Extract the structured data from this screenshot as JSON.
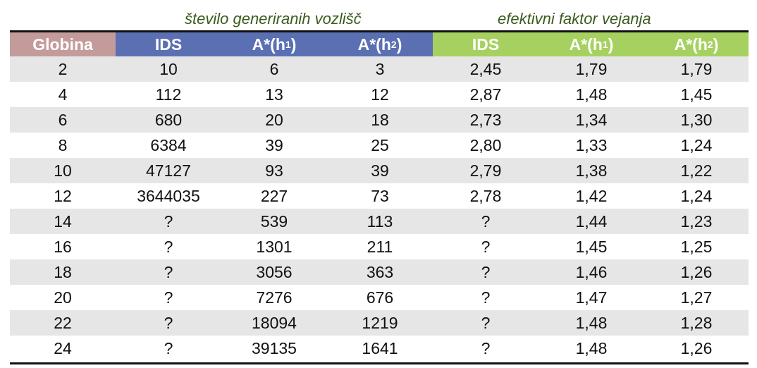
{
  "group_titles": {
    "generated_nodes": "število generiranih vozlišč",
    "branching_factor": "efektivni faktor vejanja"
  },
  "colors": {
    "globina_header": "#c49b9b",
    "nodes_header": "#5b6fb3",
    "factor_header": "#a6d160",
    "row_shade": "#e6e6e6",
    "group_title": "#3b5a1e"
  },
  "header": [
    {
      "label": "Globina",
      "sub": ""
    },
    {
      "label": "IDS",
      "sub": ""
    },
    {
      "label": "A*(h",
      "sub": "1"
    },
    {
      "label": "A*(h",
      "sub": "2"
    },
    {
      "label": "IDS",
      "sub": ""
    },
    {
      "label": "A*(h",
      "sub": "1"
    },
    {
      "label": "A*(h",
      "sub": "2"
    }
  ],
  "rows": [
    [
      "2",
      "10",
      "6",
      "3",
      "2,45",
      "1,79",
      "1,79"
    ],
    [
      "4",
      "112",
      "13",
      "12",
      "2,87",
      "1,48",
      "1,45"
    ],
    [
      "6",
      "680",
      "20",
      "18",
      "2,73",
      "1,34",
      "1,30"
    ],
    [
      "8",
      "6384",
      "39",
      "25",
      "2,80",
      "1,33",
      "1,24"
    ],
    [
      "10",
      "47127",
      "93",
      "39",
      "2,79",
      "1,38",
      "1,22"
    ],
    [
      "12",
      "3644035",
      "227",
      "73",
      "2,78",
      "1,42",
      "1,24"
    ],
    [
      "14",
      "?",
      "539",
      "113",
      "?",
      "1,44",
      "1,23"
    ],
    [
      "16",
      "?",
      "1301",
      "211",
      "?",
      "1,45",
      "1,25"
    ],
    [
      "18",
      "?",
      "3056",
      "363",
      "?",
      "1,46",
      "1,26"
    ],
    [
      "20",
      "?",
      "7276",
      "676",
      "?",
      "1,47",
      "1,27"
    ],
    [
      "22",
      "?",
      "18094",
      "1219",
      "?",
      "1,48",
      "1,28"
    ],
    [
      "24",
      "?",
      "39135",
      "1641",
      "?",
      "1,48",
      "1,26"
    ]
  ]
}
